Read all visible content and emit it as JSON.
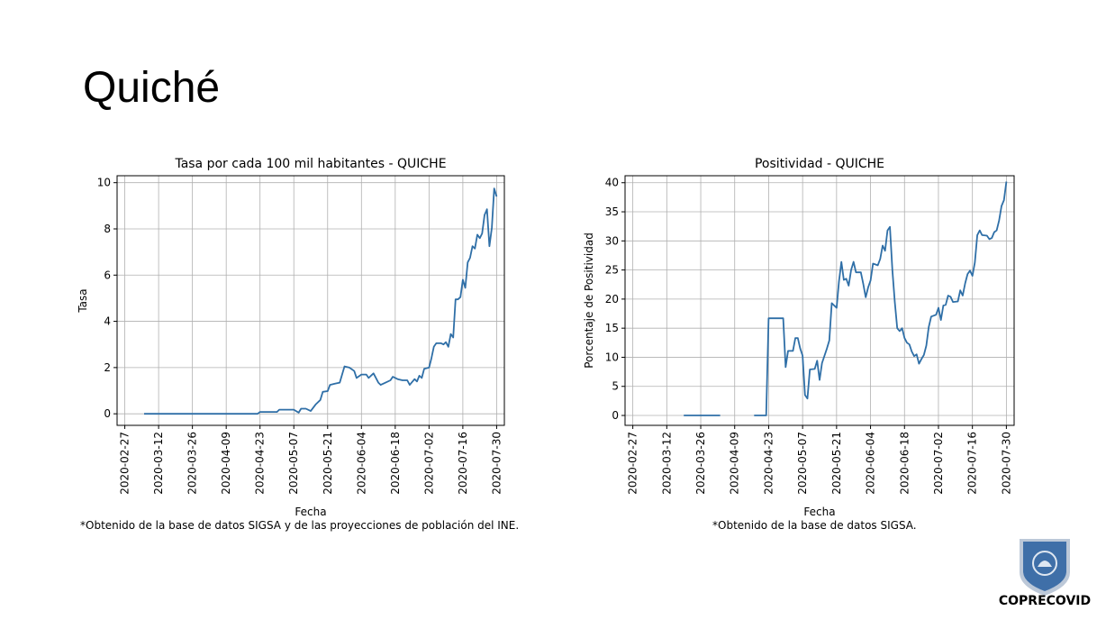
{
  "slide": {
    "title": "Quiché"
  },
  "chart_data": [
    {
      "type": "line",
      "title": "Tasa por cada 100 mil habitantes - QUICHE",
      "xlabel": "Fecha",
      "ylabel": "Tasa",
      "x_start": "2020-02-27",
      "x_end": "2020-07-30",
      "xticks": [
        "2020-02-27",
        "2020-03-12",
        "2020-03-26",
        "2020-04-09",
        "2020-04-23",
        "2020-05-07",
        "2020-05-21",
        "2020-06-04",
        "2020-06-18",
        "2020-07-02",
        "2020-07-16",
        "2020-07-30"
      ],
      "yticks": [
        0,
        2,
        4,
        6,
        8,
        10
      ],
      "ylim": [
        -0.5,
        10.3
      ],
      "grid": true,
      "series": [
        {
          "color": "#2f6fa7",
          "points": [
            [
              "2020-03-06",
              0
            ],
            [
              "2020-04-22",
              0
            ],
            [
              "2020-04-23",
              0.08
            ],
            [
              "2020-04-30",
              0.08
            ],
            [
              "2020-05-01",
              0.18
            ],
            [
              "2020-05-07",
              0.18
            ],
            [
              "2020-05-09",
              0.05
            ],
            [
              "2020-05-10",
              0.22
            ],
            [
              "2020-05-12",
              0.22
            ],
            [
              "2020-05-14",
              0.12
            ],
            [
              "2020-05-16",
              0.4
            ],
            [
              "2020-05-18",
              0.6
            ],
            [
              "2020-05-19",
              0.95
            ],
            [
              "2020-05-21",
              0.98
            ],
            [
              "2020-05-22",
              1.25
            ],
            [
              "2020-05-24",
              1.3
            ],
            [
              "2020-05-26",
              1.35
            ],
            [
              "2020-05-28",
              2.05
            ],
            [
              "2020-05-30",
              2.0
            ],
            [
              "2020-06-01",
              1.85
            ],
            [
              "2020-06-02",
              1.55
            ],
            [
              "2020-06-04",
              1.7
            ],
            [
              "2020-06-06",
              1.7
            ],
            [
              "2020-06-07",
              1.55
            ],
            [
              "2020-06-09",
              1.75
            ],
            [
              "2020-06-11",
              1.35
            ],
            [
              "2020-06-12",
              1.25
            ],
            [
              "2020-06-14",
              1.35
            ],
            [
              "2020-06-16",
              1.45
            ],
            [
              "2020-06-17",
              1.6
            ],
            [
              "2020-06-19",
              1.5
            ],
            [
              "2020-06-21",
              1.45
            ],
            [
              "2020-06-23",
              1.45
            ],
            [
              "2020-06-24",
              1.25
            ],
            [
              "2020-06-26",
              1.5
            ],
            [
              "2020-06-27",
              1.4
            ],
            [
              "2020-06-28",
              1.65
            ],
            [
              "2020-06-29",
              1.55
            ],
            [
              "2020-06-30",
              1.95
            ],
            [
              "2020-07-02",
              2.0
            ],
            [
              "2020-07-03",
              2.4
            ],
            [
              "2020-07-04",
              2.9
            ],
            [
              "2020-07-05",
              3.05
            ],
            [
              "2020-07-07",
              3.05
            ],
            [
              "2020-07-08",
              3.0
            ],
            [
              "2020-07-09",
              3.1
            ],
            [
              "2020-07-10",
              2.9
            ],
            [
              "2020-07-11",
              3.45
            ],
            [
              "2020-07-12",
              3.3
            ],
            [
              "2020-07-13",
              4.95
            ],
            [
              "2020-07-14",
              4.95
            ],
            [
              "2020-07-15",
              5.05
            ],
            [
              "2020-07-16",
              5.8
            ],
            [
              "2020-07-17",
              5.45
            ],
            [
              "2020-07-18",
              6.55
            ],
            [
              "2020-07-19",
              6.75
            ],
            [
              "2020-07-20",
              7.25
            ],
            [
              "2020-07-21",
              7.15
            ],
            [
              "2020-07-22",
              7.75
            ],
            [
              "2020-07-23",
              7.6
            ],
            [
              "2020-07-24",
              7.8
            ],
            [
              "2020-07-25",
              8.6
            ],
            [
              "2020-07-26",
              8.85
            ],
            [
              "2020-07-27",
              7.25
            ],
            [
              "2020-07-28",
              8.05
            ],
            [
              "2020-07-29",
              9.75
            ],
            [
              "2020-07-30",
              9.4
            ]
          ]
        }
      ],
      "footnote": "*Obtenido de la base de datos SIGSA y de las proyecciones de población del INE."
    },
    {
      "type": "line",
      "title": "Positividad - QUICHE",
      "xlabel": "Fecha",
      "ylabel": "Porcentaje de Positividad",
      "x_start": "2020-02-27",
      "x_end": "2020-07-30",
      "xticks": [
        "2020-02-27",
        "2020-03-12",
        "2020-03-26",
        "2020-04-09",
        "2020-04-23",
        "2020-05-07",
        "2020-05-21",
        "2020-06-04",
        "2020-06-18",
        "2020-07-02",
        "2020-07-16",
        "2020-07-30"
      ],
      "yticks": [
        0,
        5,
        10,
        15,
        20,
        25,
        30,
        35,
        40
      ],
      "ylim": [
        -1.7,
        41.2
      ],
      "grid": true,
      "series": [
        {
          "color": "#2f6fa7",
          "segments": [
            [
              [
                "2020-03-19",
                0
              ],
              [
                "2020-04-03",
                0
              ]
            ],
            [
              [
                "2020-04-17",
                0
              ],
              [
                "2020-04-22",
                0
              ],
              [
                "2020-04-23",
                16.7
              ],
              [
                "2020-04-28",
                16.7
              ],
              [
                "2020-04-29",
                16.7
              ],
              [
                "2020-04-30",
                8.3
              ],
              [
                "2020-05-01",
                11.1
              ],
              [
                "2020-05-03",
                11.1
              ],
              [
                "2020-05-04",
                13.3
              ],
              [
                "2020-05-05",
                13.3
              ],
              [
                "2020-05-06",
                11.5
              ],
              [
                "2020-05-07",
                10.3
              ],
              [
                "2020-05-08",
                3.5
              ],
              [
                "2020-05-09",
                2.9
              ],
              [
                "2020-05-10",
                7.9
              ],
              [
                "2020-05-12",
                8.0
              ],
              [
                "2020-05-13",
                9.4
              ],
              [
                "2020-05-14",
                6.1
              ],
              [
                "2020-05-15",
                9.0
              ],
              [
                "2020-05-17",
                11.5
              ],
              [
                "2020-05-18",
                12.9
              ],
              [
                "2020-05-19",
                19.3
              ],
              [
                "2020-05-21",
                18.5
              ],
              [
                "2020-05-22",
                23.0
              ],
              [
                "2020-05-23",
                26.4
              ],
              [
                "2020-05-24",
                23.3
              ],
              [
                "2020-05-25",
                23.5
              ],
              [
                "2020-05-26",
                22.3
              ],
              [
                "2020-05-27",
                25.0
              ],
              [
                "2020-05-28",
                26.4
              ],
              [
                "2020-05-29",
                24.6
              ],
              [
                "2020-05-31",
                24.6
              ],
              [
                "2020-06-01",
                22.6
              ],
              [
                "2020-06-02",
                20.3
              ],
              [
                "2020-06-03",
                22.0
              ],
              [
                "2020-06-04",
                23.2
              ],
              [
                "2020-06-05",
                26.1
              ],
              [
                "2020-06-07",
                25.8
              ],
              [
                "2020-06-08",
                26.9
              ],
              [
                "2020-06-09",
                29.2
              ],
              [
                "2020-06-10",
                28.3
              ],
              [
                "2020-06-11",
                31.8
              ],
              [
                "2020-06-12",
                32.4
              ],
              [
                "2020-06-13",
                25.0
              ],
              [
                "2020-06-14",
                19.5
              ],
              [
                "2020-06-15",
                15.0
              ],
              [
                "2020-06-16",
                14.5
              ],
              [
                "2020-06-17",
                15.0
              ],
              [
                "2020-06-18",
                13.3
              ],
              [
                "2020-06-19",
                12.5
              ],
              [
                "2020-06-20",
                12.2
              ],
              [
                "2020-06-21",
                11.0
              ],
              [
                "2020-06-22",
                10.2
              ],
              [
                "2020-06-23",
                10.5
              ],
              [
                "2020-06-24",
                8.9
              ],
              [
                "2020-06-25",
                9.7
              ],
              [
                "2020-06-26",
                10.4
              ],
              [
                "2020-06-27",
                12.0
              ],
              [
                "2020-06-28",
                15.2
              ],
              [
                "2020-06-29",
                17.0
              ],
              [
                "2020-07-01",
                17.3
              ],
              [
                "2020-07-02",
                18.5
              ],
              [
                "2020-07-03",
                16.4
              ],
              [
                "2020-07-04",
                18.9
              ],
              [
                "2020-07-05",
                19.0
              ],
              [
                "2020-07-06",
                20.6
              ],
              [
                "2020-07-07",
                20.4
              ],
              [
                "2020-07-08",
                19.5
              ],
              [
                "2020-07-10",
                19.6
              ],
              [
                "2020-07-11",
                21.5
              ],
              [
                "2020-07-12",
                20.6
              ],
              [
                "2020-07-13",
                22.7
              ],
              [
                "2020-07-14",
                24.3
              ],
              [
                "2020-07-15",
                24.9
              ],
              [
                "2020-07-16",
                24.0
              ],
              [
                "2020-07-17",
                26.3
              ],
              [
                "2020-07-18",
                31.0
              ],
              [
                "2020-07-19",
                31.8
              ],
              [
                "2020-07-20",
                31.0
              ],
              [
                "2020-07-22",
                30.9
              ],
              [
                "2020-07-23",
                30.3
              ],
              [
                "2020-07-24",
                30.5
              ],
              [
                "2020-07-25",
                31.5
              ],
              [
                "2020-07-26",
                31.8
              ],
              [
                "2020-07-27",
                33.5
              ],
              [
                "2020-07-28",
                36.0
              ],
              [
                "2020-07-29",
                37.0
              ],
              [
                "2020-07-30",
                40.2
              ]
            ]
          ]
        }
      ],
      "footnote": "*Obtenido de la base de datos SIGSA."
    }
  ],
  "logo": {
    "text": "COPRECOVID",
    "shield_color": "#3f6fa8",
    "text_color": "#1d3a6c"
  }
}
